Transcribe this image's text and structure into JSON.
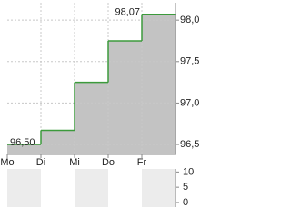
{
  "chart_data": [
    {
      "type": "step",
      "categories": [
        "Mo",
        "Di",
        "Mi",
        "Do",
        "Fr"
      ],
      "values": [
        96.5,
        96.67,
        97.25,
        97.75,
        98.07
      ],
      "value_labels": [
        "96,50",
        null,
        null,
        null,
        "98,07"
      ],
      "color": "#3c9a3c",
      "fill": "#c3c3c3",
      "ylim": [
        96.38,
        98.21
      ],
      "yticks": [
        {
          "value": 96.5,
          "label": "96,5"
        },
        {
          "value": 97.0,
          "label": "97,0"
        },
        {
          "value": 97.5,
          "label": "97,5"
        },
        {
          "value": 98.0,
          "label": "98,0"
        }
      ],
      "grid": true
    },
    {
      "type": "volume",
      "ylim": [
        -1.5,
        11
      ],
      "yticks": [
        0,
        5,
        10
      ]
    }
  ]
}
